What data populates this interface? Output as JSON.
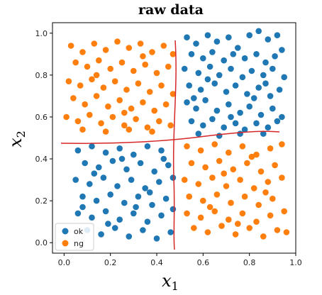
{
  "chart_data": {
    "type": "scatter",
    "title": "raw data",
    "xlabel": "x",
    "xlabel_sub": "1",
    "ylabel": "x",
    "ylabel_sub": "2",
    "xlim": [
      -0.05,
      1.0
    ],
    "ylim": [
      -0.05,
      1.05
    ],
    "xticks": [
      "0.0",
      "0.2",
      "0.4",
      "0.6",
      "0.8",
      "1.0"
    ],
    "yticks": [
      "0.0",
      "0.2",
      "0.4",
      "0.6",
      "0.8",
      "1.0"
    ],
    "grid": false,
    "legend_position": "lower-left",
    "colors": {
      "ok": "#1f77b4",
      "ng": "#ff7f0e",
      "boundary": "#d62728"
    },
    "series": [
      {
        "name": "ok",
        "color": "#1f77b4",
        "points": [
          [
            0.53,
            0.98
          ],
          [
            0.57,
            0.95
          ],
          [
            0.62,
            0.99
          ],
          [
            0.66,
            0.96
          ],
          [
            0.71,
            0.98
          ],
          [
            0.75,
            0.93
          ],
          [
            0.8,
            0.99
          ],
          [
            0.84,
            1.01
          ],
          [
            0.88,
            0.97
          ],
          [
            0.92,
            0.99
          ],
          [
            0.55,
            0.9
          ],
          [
            0.6,
            0.88
          ],
          [
            0.64,
            0.91
          ],
          [
            0.69,
            0.87
          ],
          [
            0.73,
            0.9
          ],
          [
            0.78,
            0.88
          ],
          [
            0.83,
            0.9
          ],
          [
            0.87,
            0.86
          ],
          [
            0.91,
            0.89
          ],
          [
            0.94,
            0.92
          ],
          [
            0.52,
            0.83
          ],
          [
            0.58,
            0.81
          ],
          [
            0.63,
            0.84
          ],
          [
            0.67,
            0.8
          ],
          [
            0.72,
            0.83
          ],
          [
            0.77,
            0.79
          ],
          [
            0.81,
            0.82
          ],
          [
            0.86,
            0.8
          ],
          [
            0.9,
            0.83
          ],
          [
            0.95,
            0.79
          ],
          [
            0.54,
            0.75
          ],
          [
            0.59,
            0.73
          ],
          [
            0.65,
            0.76
          ],
          [
            0.7,
            0.72
          ],
          [
            0.74,
            0.75
          ],
          [
            0.79,
            0.71
          ],
          [
            0.84,
            0.74
          ],
          [
            0.89,
            0.7
          ],
          [
            0.93,
            0.73
          ],
          [
            0.53,
            0.67
          ],
          [
            0.57,
            0.64
          ],
          [
            0.61,
            0.68
          ],
          [
            0.66,
            0.63
          ],
          [
            0.71,
            0.66
          ],
          [
            0.76,
            0.62
          ],
          [
            0.8,
            0.65
          ],
          [
            0.85,
            0.61
          ],
          [
            0.9,
            0.64
          ],
          [
            0.94,
            0.6
          ],
          [
            0.55,
            0.58
          ],
          [
            0.6,
            0.56
          ],
          [
            0.64,
            0.59
          ],
          [
            0.69,
            0.55
          ],
          [
            0.74,
            0.57
          ],
          [
            0.78,
            0.54
          ],
          [
            0.83,
            0.57
          ],
          [
            0.88,
            0.55
          ],
          [
            0.92,
            0.58
          ],
          [
            0.58,
            0.52
          ],
          [
            0.67,
            0.51
          ],
          [
            0.76,
            0.52
          ],
          [
            0.86,
            0.52
          ],
          [
            0.62,
            0.78
          ],
          [
            0.82,
            0.69
          ],
          [
            0.56,
            0.69
          ],
          [
            0.87,
            0.76
          ],
          [
            0.72,
            0.6
          ],
          [
            0.06,
            0.44
          ],
          [
            0.12,
            0.46
          ],
          [
            0.18,
            0.43
          ],
          [
            0.24,
            0.45
          ],
          [
            0.3,
            0.42
          ],
          [
            0.36,
            0.46
          ],
          [
            0.42,
            0.44
          ],
          [
            0.09,
            0.38
          ],
          [
            0.15,
            0.36
          ],
          [
            0.21,
            0.39
          ],
          [
            0.27,
            0.35
          ],
          [
            0.33,
            0.38
          ],
          [
            0.39,
            0.34
          ],
          [
            0.45,
            0.37
          ],
          [
            0.05,
            0.3
          ],
          [
            0.11,
            0.28
          ],
          [
            0.17,
            0.31
          ],
          [
            0.23,
            0.27
          ],
          [
            0.29,
            0.3
          ],
          [
            0.35,
            0.26
          ],
          [
            0.41,
            0.29
          ],
          [
            0.47,
            0.31
          ],
          [
            0.08,
            0.22
          ],
          [
            0.14,
            0.2
          ],
          [
            0.2,
            0.23
          ],
          [
            0.26,
            0.19
          ],
          [
            0.32,
            0.22
          ],
          [
            0.38,
            0.18
          ],
          [
            0.44,
            0.21
          ],
          [
            0.06,
            0.14
          ],
          [
            0.12,
            0.12
          ],
          [
            0.18,
            0.15
          ],
          [
            0.24,
            0.11
          ],
          [
            0.3,
            0.14
          ],
          [
            0.36,
            0.1
          ],
          [
            0.42,
            0.13
          ],
          [
            0.47,
            0.16
          ],
          [
            0.1,
            0.06
          ],
          [
            0.16,
            0.04
          ],
          [
            0.22,
            0.07
          ],
          [
            0.28,
            0.03
          ],
          [
            0.34,
            0.06
          ],
          [
            0.4,
            0.02
          ],
          [
            0.46,
            0.05
          ],
          [
            0.13,
            0.33
          ],
          [
            0.25,
            0.4
          ],
          [
            0.37,
            0.24
          ],
          [
            0.19,
            0.09
          ],
          [
            0.31,
            0.17
          ],
          [
            0.43,
            0.4
          ],
          [
            0.08,
            0.17
          ]
        ]
      },
      {
        "name": "ng",
        "color": "#ff7f0e",
        "points": [
          [
            0.03,
            0.94
          ],
          [
            0.08,
            0.91
          ],
          [
            0.13,
            0.95
          ],
          [
            0.18,
            0.92
          ],
          [
            0.23,
            0.96
          ],
          [
            0.28,
            0.93
          ],
          [
            0.33,
            0.95
          ],
          [
            0.38,
            0.91
          ],
          [
            0.43,
            0.94
          ],
          [
            0.47,
            0.9
          ],
          [
            0.05,
            0.86
          ],
          [
            0.1,
            0.84
          ],
          [
            0.15,
            0.87
          ],
          [
            0.2,
            0.83
          ],
          [
            0.25,
            0.86
          ],
          [
            0.3,
            0.82
          ],
          [
            0.35,
            0.85
          ],
          [
            0.4,
            0.81
          ],
          [
            0.45,
            0.84
          ],
          [
            0.02,
            0.77
          ],
          [
            0.07,
            0.75
          ],
          [
            0.12,
            0.78
          ],
          [
            0.17,
            0.74
          ],
          [
            0.22,
            0.77
          ],
          [
            0.27,
            0.73
          ],
          [
            0.32,
            0.76
          ],
          [
            0.37,
            0.72
          ],
          [
            0.42,
            0.75
          ],
          [
            0.47,
            0.71
          ],
          [
            0.04,
            0.69
          ],
          [
            0.09,
            0.66
          ],
          [
            0.14,
            0.7
          ],
          [
            0.19,
            0.65
          ],
          [
            0.24,
            0.68
          ],
          [
            0.29,
            0.64
          ],
          [
            0.34,
            0.67
          ],
          [
            0.39,
            0.63
          ],
          [
            0.44,
            0.66
          ],
          [
            0.01,
            0.6
          ],
          [
            0.06,
            0.58
          ],
          [
            0.11,
            0.61
          ],
          [
            0.16,
            0.57
          ],
          [
            0.21,
            0.6
          ],
          [
            0.26,
            0.56
          ],
          [
            0.31,
            0.59
          ],
          [
            0.36,
            0.55
          ],
          [
            0.41,
            0.58
          ],
          [
            0.46,
            0.56
          ],
          [
            0.08,
            0.54
          ],
          [
            0.18,
            0.53
          ],
          [
            0.28,
            0.54
          ],
          [
            0.38,
            0.53
          ],
          [
            0.14,
            0.8
          ],
          [
            0.34,
            0.89
          ],
          [
            0.26,
            0.62
          ],
          [
            0.53,
            0.46
          ],
          [
            0.59,
            0.44
          ],
          [
            0.65,
            0.47
          ],
          [
            0.71,
            0.43
          ],
          [
            0.77,
            0.46
          ],
          [
            0.83,
            0.42
          ],
          [
            0.89,
            0.45
          ],
          [
            0.94,
            0.47
          ],
          [
            0.55,
            0.38
          ],
          [
            0.61,
            0.36
          ],
          [
            0.67,
            0.39
          ],
          [
            0.73,
            0.35
          ],
          [
            0.79,
            0.38
          ],
          [
            0.85,
            0.34
          ],
          [
            0.91,
            0.37
          ],
          [
            0.52,
            0.3
          ],
          [
            0.58,
            0.28
          ],
          [
            0.64,
            0.31
          ],
          [
            0.7,
            0.27
          ],
          [
            0.76,
            0.3
          ],
          [
            0.82,
            0.26
          ],
          [
            0.88,
            0.29
          ],
          [
            0.94,
            0.31
          ],
          [
            0.54,
            0.22
          ],
          [
            0.6,
            0.2
          ],
          [
            0.66,
            0.23
          ],
          [
            0.72,
            0.19
          ],
          [
            0.78,
            0.22
          ],
          [
            0.84,
            0.18
          ],
          [
            0.9,
            0.21
          ],
          [
            0.53,
            0.14
          ],
          [
            0.59,
            0.12
          ],
          [
            0.65,
            0.15
          ],
          [
            0.71,
            0.11
          ],
          [
            0.77,
            0.14
          ],
          [
            0.83,
            0.1
          ],
          [
            0.89,
            0.13
          ],
          [
            0.95,
            0.15
          ],
          [
            0.56,
            0.07
          ],
          [
            0.62,
            0.05
          ],
          [
            0.68,
            0.08
          ],
          [
            0.74,
            0.04
          ],
          [
            0.8,
            0.07
          ],
          [
            0.86,
            0.03
          ],
          [
            0.92,
            0.06
          ],
          [
            0.96,
            0.05
          ],
          [
            0.69,
            0.33
          ],
          [
            0.81,
            0.41
          ],
          [
            0.63,
            0.17
          ],
          [
            0.87,
            0.24
          ],
          [
            0.75,
            0.09
          ]
        ]
      }
    ]
  }
}
